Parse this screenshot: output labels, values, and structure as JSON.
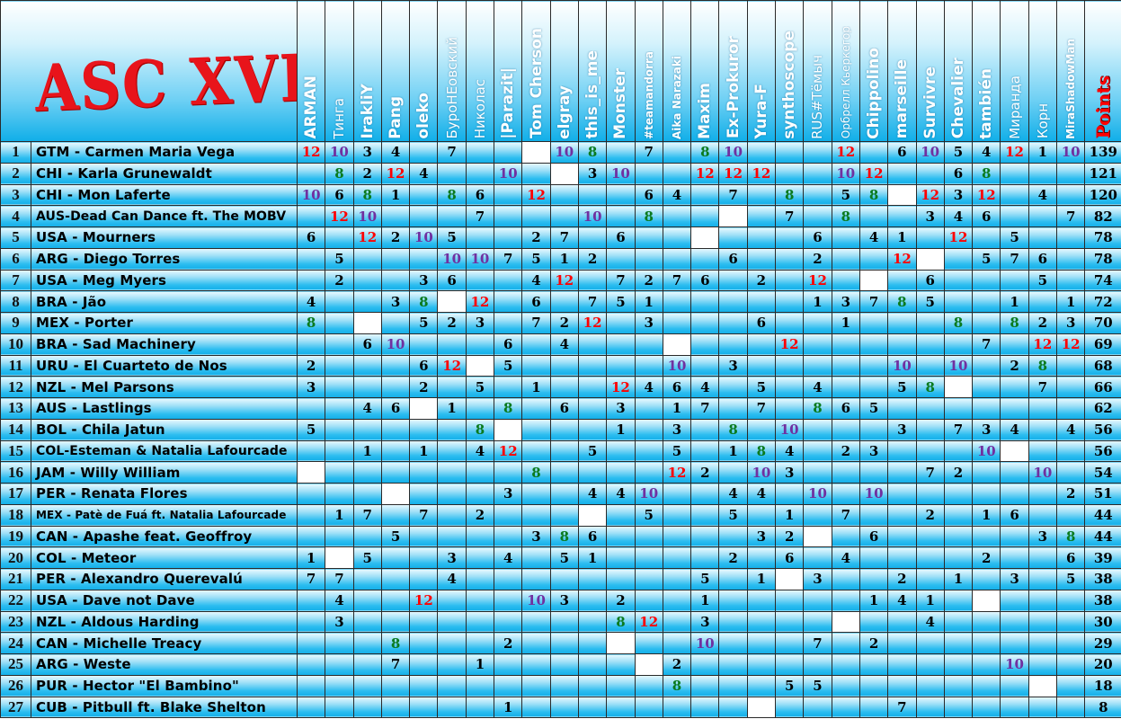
{
  "title": "ASC XVI",
  "points_label": "Points",
  "voters": [
    "ARMAN",
    "Тинга",
    "IrakliY",
    "Pang",
    "oleko",
    "БуроНЕовский",
    "Николас",
    "|Parazit|",
    "Tom Cherson",
    "elgray",
    "this_is_me",
    "Monster",
    "#teamandorra",
    "Aika Narazaki",
    "Maxim",
    "Ex-Prokuror",
    "Yura-F",
    "synthoscope",
    "RUS#Тёмыч",
    "Орбрелл Кьеркегор",
    "Chippolino",
    "marseille",
    "Survivre",
    "Chevalier",
    "también",
    "Миранда",
    "Корн",
    "MiraShadowMan"
  ],
  "colors": {
    "12": "#ff0000",
    "10": "#7030a0",
    "8": "#0a7a1e",
    "default": "#000000",
    "self_cell": "#ffffff",
    "header_text": "#ffffff",
    "points_header": "#ff0000",
    "logo": "#e8141b"
  },
  "rows": [
    {
      "rank": "1",
      "name": "GTM - Carmen Maria Vega",
      "points": "139",
      "self_voter_index": 8,
      "votes": [
        12,
        10,
        3,
        4,
        null,
        7,
        null,
        null,
        null,
        10,
        8,
        null,
        7,
        null,
        8,
        10,
        null,
        null,
        null,
        12,
        null,
        6,
        10,
        5,
        4,
        12,
        1,
        10
      ]
    },
    {
      "rank": "2",
      "name": "CHI - Karla Grunewaldt",
      "points": "121",
      "self_voter_index": 9,
      "votes": [
        null,
        8,
        2,
        12,
        4,
        null,
        null,
        10,
        null,
        null,
        3,
        10,
        null,
        null,
        12,
        12,
        12,
        null,
        null,
        10,
        12,
        null,
        null,
        6,
        8,
        null,
        null,
        null
      ]
    },
    {
      "rank": "3",
      "name": "CHI - Mon Laferte",
      "points": "120",
      "self_voter_index": 21,
      "votes": [
        10,
        6,
        8,
        1,
        null,
        8,
        6,
        null,
        12,
        null,
        null,
        null,
        6,
        4,
        null,
        7,
        null,
        8,
        null,
        5,
        8,
        null,
        12,
        3,
        12,
        null,
        4,
        null
      ]
    },
    {
      "rank": "4",
      "name": "AUS-Dead Can Dance ft. The MOBV",
      "points": "82",
      "self_voter_index": 15,
      "votes": [
        null,
        12,
        10,
        null,
        null,
        null,
        7,
        null,
        null,
        null,
        10,
        null,
        8,
        null,
        null,
        null,
        null,
        7,
        null,
        8,
        null,
        null,
        3,
        4,
        6,
        null,
        null,
        7
      ]
    },
    {
      "rank": "5",
      "name": "USA - Mourners",
      "points": "78",
      "self_voter_index": 14,
      "votes": [
        6,
        null,
        12,
        2,
        10,
        5,
        null,
        null,
        2,
        7,
        null,
        6,
        null,
        null,
        null,
        null,
        null,
        null,
        6,
        null,
        4,
        1,
        null,
        12,
        null,
        5,
        null,
        null
      ]
    },
    {
      "rank": "6",
      "name": "ARG - Diego Torres",
      "points": "78",
      "self_voter_index": 22,
      "votes": [
        null,
        5,
        null,
        null,
        null,
        10,
        10,
        7,
        5,
        1,
        2,
        null,
        null,
        null,
        null,
        6,
        null,
        null,
        2,
        null,
        null,
        12,
        null,
        null,
        5,
        7,
        6,
        null
      ]
    },
    {
      "rank": "7",
      "name": "USA - Meg Myers",
      "points": "74",
      "self_voter_index": 20,
      "votes": [
        null,
        2,
        null,
        null,
        3,
        6,
        null,
        null,
        4,
        12,
        null,
        7,
        2,
        7,
        6,
        null,
        2,
        null,
        12,
        null,
        null,
        null,
        6,
        null,
        null,
        null,
        5,
        null
      ]
    },
    {
      "rank": "8",
      "name": "BRA - Jão",
      "points": "72",
      "self_voter_index": 5,
      "votes": [
        4,
        null,
        null,
        3,
        8,
        null,
        12,
        null,
        6,
        null,
        7,
        5,
        1,
        null,
        null,
        null,
        null,
        null,
        1,
        3,
        7,
        8,
        5,
        null,
        null,
        1,
        null,
        1
      ]
    },
    {
      "rank": "9",
      "name": "MEX - Porter",
      "points": "70",
      "self_voter_index": 2,
      "votes": [
        8,
        null,
        null,
        null,
        5,
        2,
        3,
        null,
        7,
        2,
        12,
        null,
        3,
        null,
        null,
        null,
        6,
        null,
        null,
        1,
        null,
        null,
        null,
        8,
        null,
        8,
        2,
        3
      ]
    },
    {
      "rank": "10",
      "name": "BRA - Sad Machinery",
      "points": "69",
      "self_voter_index": 13,
      "votes": [
        null,
        null,
        6,
        10,
        null,
        null,
        null,
        6,
        null,
        4,
        null,
        null,
        null,
        null,
        null,
        null,
        null,
        12,
        null,
        null,
        null,
        null,
        null,
        null,
        7,
        null,
        12,
        12
      ]
    },
    {
      "rank": "11",
      "name": "URU - El Cuarteto de Nos",
      "points": "68",
      "self_voter_index": 6,
      "votes": [
        2,
        null,
        null,
        null,
        6,
        12,
        null,
        5,
        null,
        null,
        null,
        null,
        null,
        10,
        null,
        3,
        null,
        null,
        null,
        null,
        null,
        10,
        null,
        10,
        null,
        2,
        8,
        null
      ]
    },
    {
      "rank": "12",
      "name": "NZL - Mel Parsons",
      "points": "66",
      "self_voter_index": 23,
      "votes": [
        3,
        null,
        null,
        null,
        2,
        null,
        5,
        null,
        1,
        null,
        null,
        12,
        4,
        6,
        4,
        null,
        5,
        null,
        4,
        null,
        null,
        5,
        8,
        null,
        null,
        null,
        7,
        null
      ]
    },
    {
      "rank": "13",
      "name": "AUS - Lastlings",
      "points": "62",
      "self_voter_index": 4,
      "votes": [
        null,
        null,
        4,
        6,
        null,
        1,
        null,
        8,
        null,
        6,
        null,
        3,
        null,
        1,
        7,
        null,
        7,
        null,
        8,
        6,
        5,
        null,
        null,
        null,
        null,
        null,
        null,
        null
      ]
    },
    {
      "rank": "14",
      "name": "BOL - Chila Jatun",
      "points": "56",
      "self_voter_index": 7,
      "votes": [
        5,
        null,
        null,
        null,
        null,
        null,
        8,
        null,
        null,
        null,
        null,
        1,
        null,
        3,
        null,
        8,
        null,
        10,
        null,
        null,
        null,
        3,
        null,
        7,
        3,
        4,
        null,
        4
      ]
    },
    {
      "rank": "15",
      "name": "COL-Esteman & Natalia Lafourcade",
      "points": "56",
      "self_voter_index": 25,
      "votes": [
        null,
        null,
        1,
        null,
        1,
        null,
        4,
        12,
        null,
        null,
        5,
        null,
        null,
        5,
        null,
        1,
        8,
        4,
        null,
        2,
        3,
        null,
        null,
        null,
        10,
        null,
        null,
        null
      ]
    },
    {
      "rank": "16",
      "name": "JAM - Willy William",
      "points": "54",
      "self_voter_index": 0,
      "votes": [
        null,
        null,
        null,
        null,
        null,
        null,
        null,
        null,
        8,
        null,
        null,
        null,
        null,
        12,
        2,
        null,
        10,
        3,
        null,
        null,
        null,
        null,
        7,
        2,
        null,
        null,
        10,
        null
      ]
    },
    {
      "rank": "17",
      "name": "PER - Renata Flores",
      "points": "51",
      "self_voter_index": 3,
      "votes": [
        null,
        null,
        null,
        null,
        null,
        null,
        null,
        3,
        null,
        null,
        4,
        4,
        10,
        null,
        null,
        4,
        4,
        null,
        10,
        null,
        10,
        null,
        null,
        null,
        null,
        null,
        null,
        2
      ]
    },
    {
      "rank": "18",
      "name": "MEX - Patè de Fuá ft. Natalia Lafourcade",
      "points": "44",
      "self_voter_index": 10,
      "votes": [
        null,
        1,
        7,
        null,
        7,
        null,
        2,
        null,
        null,
        null,
        null,
        null,
        5,
        null,
        null,
        5,
        null,
        1,
        null,
        7,
        null,
        null,
        2,
        null,
        1,
        6,
        null,
        null
      ]
    },
    {
      "rank": "19",
      "name": "CAN - Apashe feat. Geoffroy",
      "points": "44",
      "self_voter_index": 18,
      "votes": [
        null,
        null,
        null,
        5,
        null,
        null,
        null,
        null,
        3,
        8,
        6,
        null,
        null,
        null,
        null,
        null,
        3,
        2,
        null,
        null,
        6,
        null,
        null,
        null,
        null,
        null,
        3,
        8
      ]
    },
    {
      "rank": "20",
      "name": "COL - Meteor",
      "points": "39",
      "self_voter_index": 1,
      "votes": [
        1,
        null,
        5,
        null,
        null,
        3,
        null,
        4,
        null,
        5,
        1,
        null,
        null,
        null,
        null,
        2,
        null,
        6,
        null,
        4,
        null,
        null,
        null,
        null,
        2,
        null,
        null,
        6
      ]
    },
    {
      "rank": "21",
      "name": "PER - Alexandro Querevalú",
      "points": "38",
      "self_voter_index": 17,
      "votes": [
        7,
        7,
        null,
        null,
        null,
        4,
        null,
        null,
        null,
        null,
        null,
        null,
        null,
        null,
        5,
        null,
        1,
        null,
        3,
        null,
        null,
        2,
        null,
        1,
        null,
        3,
        null,
        5
      ]
    },
    {
      "rank": "22",
      "name": "USA - Dave not Dave",
      "points": "38",
      "self_voter_index": 24,
      "votes": [
        null,
        4,
        null,
        null,
        12,
        null,
        null,
        null,
        10,
        3,
        null,
        2,
        null,
        null,
        1,
        null,
        null,
        null,
        null,
        null,
        1,
        4,
        1,
        null,
        null,
        null,
        null,
        null
      ]
    },
    {
      "rank": "23",
      "name": "NZL - Aldous Harding",
      "points": "30",
      "self_voter_index": 19,
      "votes": [
        null,
        3,
        null,
        null,
        null,
        null,
        null,
        null,
        null,
        null,
        null,
        8,
        12,
        null,
        3,
        null,
        null,
        null,
        null,
        null,
        null,
        null,
        4,
        null,
        null,
        null,
        null,
        null
      ]
    },
    {
      "rank": "24",
      "name": "CAN - Michelle Treacy",
      "points": "29",
      "self_voter_index": 11,
      "votes": [
        null,
        null,
        null,
        8,
        null,
        null,
        null,
        2,
        null,
        null,
        null,
        null,
        null,
        null,
        10,
        null,
        null,
        null,
        7,
        null,
        2,
        null,
        null,
        null,
        null,
        null,
        null,
        null
      ]
    },
    {
      "rank": "25",
      "name": "ARG - Weste",
      "points": "20",
      "self_voter_index": 12,
      "votes": [
        null,
        null,
        null,
        7,
        null,
        null,
        1,
        null,
        null,
        null,
        null,
        null,
        null,
        2,
        null,
        null,
        null,
        null,
        null,
        null,
        null,
        null,
        null,
        null,
        null,
        10,
        null,
        null
      ]
    },
    {
      "rank": "26",
      "name": "PUR - Hector \"El Bambino\"",
      "points": "18",
      "self_voter_index": 26,
      "votes": [
        null,
        null,
        null,
        null,
        null,
        null,
        null,
        null,
        null,
        null,
        null,
        null,
        null,
        8,
        null,
        null,
        null,
        5,
        5,
        null,
        null,
        null,
        null,
        null,
        null,
        null,
        null,
        null
      ]
    },
    {
      "rank": "27",
      "name": "CUB - Pitbull ft. Blake Shelton",
      "points": "8",
      "self_voter_index": 16,
      "votes": [
        null,
        null,
        null,
        null,
        null,
        null,
        null,
        1,
        null,
        null,
        null,
        null,
        null,
        null,
        null,
        null,
        null,
        null,
        null,
        null,
        null,
        7,
        null,
        null,
        null,
        null,
        null,
        null
      ]
    }
  ]
}
